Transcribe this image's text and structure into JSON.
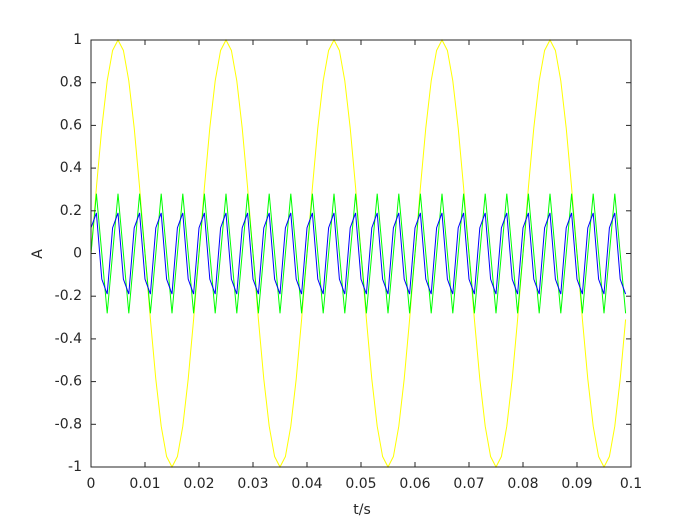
{
  "chart_data": {
    "type": "line",
    "xlabel": "t/s",
    "ylabel": "A",
    "xlim": [
      0,
      0.1
    ],
    "ylim": [
      -1,
      1
    ],
    "xticks": [
      0,
      0.01,
      0.02,
      0.03,
      0.04,
      0.05,
      0.06,
      0.07,
      0.08,
      0.09,
      0.1
    ],
    "yticks": [
      -1,
      -0.8,
      -0.6,
      -0.4,
      -0.2,
      0,
      0.2,
      0.4,
      0.6,
      0.8,
      1
    ],
    "x": [
      0,
      0.001,
      0.002,
      0.003,
      0.004,
      0.005,
      0.006,
      0.007,
      0.008,
      0.009,
      0.01,
      0.011,
      0.012,
      0.013,
      0.014,
      0.015,
      0.016,
      0.017,
      0.018,
      0.019,
      0.02,
      0.021,
      0.022,
      0.023,
      0.024,
      0.025,
      0.026,
      0.027,
      0.028,
      0.029,
      0.03,
      0.031,
      0.032,
      0.033,
      0.034,
      0.035,
      0.036,
      0.037,
      0.038,
      0.039,
      0.04,
      0.041,
      0.042,
      0.043,
      0.044,
      0.045,
      0.046,
      0.047,
      0.048,
      0.049,
      0.05,
      0.051,
      0.052,
      0.053,
      0.054,
      0.055,
      0.056,
      0.057,
      0.058,
      0.059,
      0.06,
      0.061,
      0.062,
      0.063,
      0.064,
      0.065,
      0.066,
      0.067,
      0.068,
      0.069,
      0.07,
      0.071,
      0.072,
      0.073,
      0.074,
      0.075,
      0.076,
      0.077,
      0.078,
      0.079,
      0.08,
      0.081,
      0.082,
      0.083,
      0.084,
      0.085,
      0.086,
      0.087,
      0.088,
      0.089,
      0.09,
      0.091,
      0.092,
      0.093,
      0.094,
      0.095,
      0.096,
      0.097,
      0.098,
      0.099
    ],
    "series": [
      {
        "color": "#ffff00",
        "values": [
          0,
          0.309,
          0.588,
          0.809,
          0.951,
          1,
          0.951,
          0.809,
          0.588,
          0.309,
          0,
          -0.309,
          -0.588,
          -0.809,
          -0.951,
          -1,
          -0.951,
          -0.809,
          -0.588,
          -0.309,
          0,
          0.309,
          0.588,
          0.809,
          0.951,
          1,
          0.951,
          0.809,
          0.588,
          0.309,
          0,
          -0.309,
          -0.588,
          -0.809,
          -0.951,
          -1,
          -0.951,
          -0.809,
          -0.588,
          -0.309,
          0,
          0.309,
          0.588,
          0.809,
          0.951,
          1,
          0.951,
          0.809,
          0.588,
          0.309,
          0,
          -0.309,
          -0.588,
          -0.809,
          -0.951,
          -1,
          -0.951,
          -0.809,
          -0.588,
          -0.309,
          0,
          0.309,
          0.588,
          0.809,
          0.951,
          1,
          0.951,
          0.809,
          0.588,
          0.309,
          0,
          -0.309,
          -0.588,
          -0.809,
          -0.951,
          -1,
          -0.951,
          -0.809,
          -0.588,
          -0.309,
          0,
          0.309,
          0.588,
          0.809,
          0.951,
          1,
          0.951,
          0.809,
          0.588,
          0.309,
          0,
          -0.309,
          -0.588,
          -0.809,
          -0.951,
          -1,
          -0.951,
          -0.809,
          -0.588,
          -0.309
        ]
      },
      {
        "color": "#00ff00",
        "values": [
          0,
          0.28,
          0,
          -0.28,
          0,
          0.28,
          0,
          -0.28,
          0,
          0.28,
          0,
          -0.28,
          0,
          0.28,
          0,
          -0.28,
          0,
          0.28,
          0,
          -0.28,
          0,
          0.28,
          0,
          -0.28,
          0,
          0.28,
          0,
          -0.28,
          0,
          0.28,
          0,
          -0.28,
          0,
          0.28,
          0,
          -0.28,
          0,
          0.28,
          0,
          -0.28,
          0,
          0.28,
          0,
          -0.28,
          0,
          0.28,
          0,
          -0.28,
          0,
          0.28,
          0,
          -0.28,
          0,
          0.28,
          0,
          -0.28,
          0,
          0.28,
          0,
          -0.28,
          0,
          0.28,
          0,
          -0.28,
          0,
          0.28,
          0,
          -0.28,
          0,
          0.28,
          0,
          -0.28,
          0,
          0.28,
          0,
          -0.28,
          0,
          0.28,
          0,
          -0.28,
          0,
          0.28,
          0,
          -0.28,
          0,
          0.28,
          0,
          -0.28,
          0,
          0.28,
          0,
          -0.28,
          0,
          0.28,
          0,
          -0.28,
          0,
          0.28,
          0,
          -0.28
        ]
      },
      {
        "color": "#0000ff",
        "values": [
          0.12,
          0.19,
          -0.12,
          -0.19,
          0.12,
          0.19,
          -0.12,
          -0.19,
          0.12,
          0.19,
          -0.12,
          -0.19,
          0.12,
          0.19,
          -0.12,
          -0.19,
          0.12,
          0.19,
          -0.12,
          -0.19,
          0.12,
          0.19,
          -0.12,
          -0.19,
          0.12,
          0.19,
          -0.12,
          -0.19,
          0.12,
          0.19,
          -0.12,
          -0.19,
          0.12,
          0.19,
          -0.12,
          -0.19,
          0.12,
          0.19,
          -0.12,
          -0.19,
          0.12,
          0.19,
          -0.12,
          -0.19,
          0.12,
          0.19,
          -0.12,
          -0.19,
          0.12,
          0.19,
          -0.12,
          -0.19,
          0.12,
          0.19,
          -0.12,
          -0.19,
          0.12,
          0.19,
          -0.12,
          -0.19,
          0.12,
          0.19,
          -0.12,
          -0.19,
          0.12,
          0.19,
          -0.12,
          -0.19,
          0.12,
          0.19,
          -0.12,
          -0.19,
          0.12,
          0.19,
          -0.12,
          -0.19,
          0.12,
          0.19,
          -0.12,
          -0.19,
          0.12,
          0.19,
          -0.12,
          -0.19,
          0.12,
          0.19,
          -0.12,
          -0.19,
          0.12,
          0.19,
          -0.12,
          -0.19,
          0.12,
          0.19,
          -0.12,
          -0.19,
          0.12,
          0.19,
          -0.12,
          -0.19
        ]
      }
    ]
  }
}
